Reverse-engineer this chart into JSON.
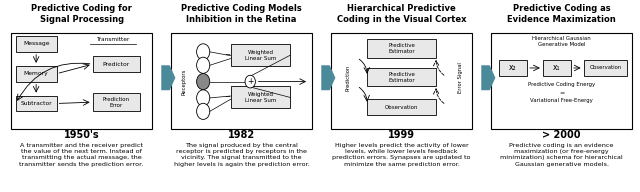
{
  "title1": "Predictive Coding for\nSignal Processing",
  "title2": "Predictive Coding Models\nInhibition in the Retina",
  "title3": "Hierarchical Predictive\nCoding in the Visual Cortex",
  "title4": "Predictive Coding as\nEvidence Maximization",
  "year1": "1950's",
  "year2": "1982",
  "year3": "1999",
  "year4": "> 2000",
  "desc1": "A transmitter and the receiver predict\nthe value of the next term. Instead of\ntransmitting the actual message, the\ntransmitter sends the prediction error.",
  "desc2": "The signal produced by the central\nreceptor is predicted by receptors in the\nvicinity. The signal transmitted to the\nhigher levels is again the prediction error.",
  "desc3": "Higher levels predict the activity of lower\nlevels, while lower levels feedback\nprediction errors. Synapses are updated to\nminimize the same prediction error.",
  "desc4": "Predictive coding is an evidence\nmaximization (or free-energy\nminimization) schema for hierarchical\nGaussian generative models.",
  "bg_color": "#ffffff",
  "arrow_color": "#4a8a9a",
  "title_fontsize": 6.0,
  "small_fontsize": 4.5,
  "tiny_fontsize": 4.0,
  "year_fontsize": 7.0,
  "desc_fontsize": 4.6
}
